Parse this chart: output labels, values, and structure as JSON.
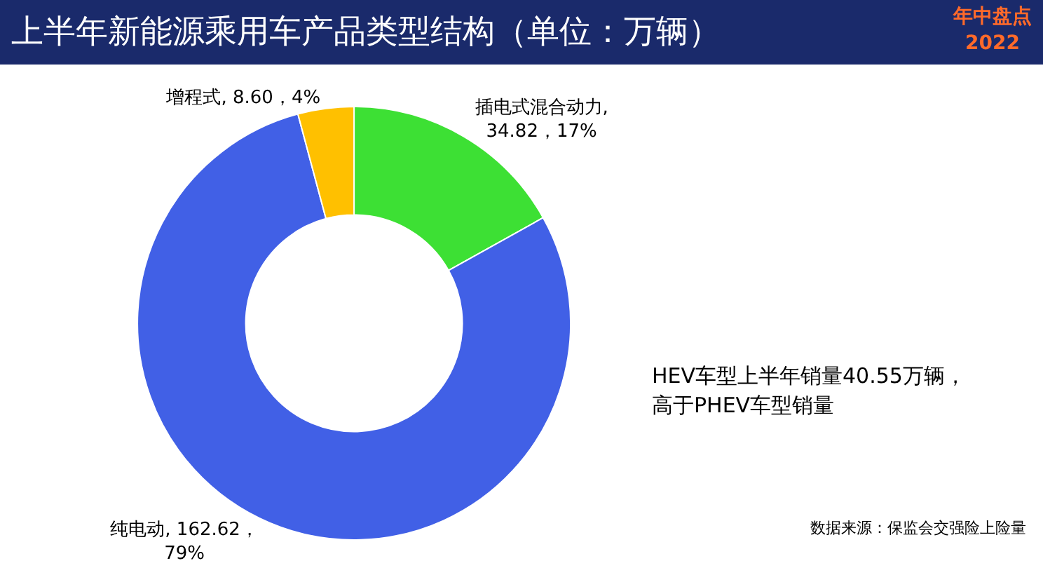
{
  "chart_data": {
    "type": "donut",
    "title": "上半年新能源乘用车产品类型结构（单位：万辆）",
    "categories": [
      "插电式混合动力",
      "纯电动",
      "增程式"
    ],
    "values": [
      34.82,
      162.62,
      8.6
    ],
    "colors": [
      "#3de034",
      "#4160e6",
      "#ffc000"
    ],
    "value_labels": [
      ",\n34.82，17%",
      ", 162.62，\n79%",
      ", 8.60，4%"
    ],
    "legend": false,
    "annotations": [
      "HEV车型上半年销量40.55万辆，",
      "高于PHEV车型销量",
      "数据来源：保监会交强险上险量",
      "年中盘点",
      "2022"
    ]
  }
}
